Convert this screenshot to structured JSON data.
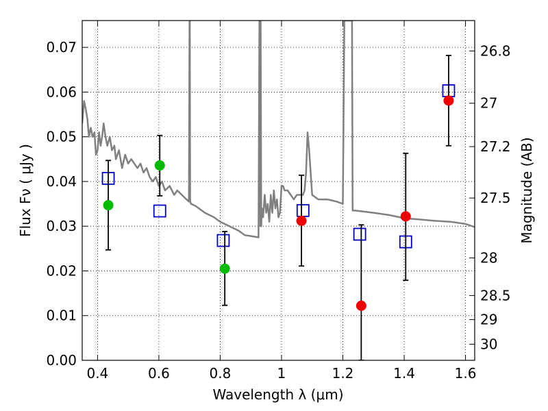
{
  "chart_data": {
    "type": "scatter",
    "xlabel": "Wavelength  λ (μm)",
    "ylabel": "Flux  Fν  ( μJy )",
    "y2label": "Magnitude (AB)",
    "xlim": [
      0.35,
      1.63
    ],
    "ylim": [
      0.0,
      0.076
    ],
    "grid": true,
    "x_ticks": [
      0.4,
      0.6,
      0.8,
      1.0,
      1.2,
      1.4,
      1.6
    ],
    "x_tick_labels": [
      "0.4",
      "0.6",
      "0.8",
      "1",
      "1.2",
      "1.4",
      "1.6"
    ],
    "y_ticks": [
      0.0,
      0.01,
      0.02,
      0.03,
      0.04,
      0.05,
      0.06,
      0.07
    ],
    "y_tick_labels": [
      "0.00",
      "0.01",
      "0.02",
      "0.03",
      "0.04",
      "0.05",
      "0.06",
      "0.07"
    ],
    "mag_ticks": [
      {
        "flux": 0.0692,
        "label": "26.8"
      },
      {
        "flux": 0.0575,
        "label": "27"
      },
      {
        "flux": 0.0478,
        "label": "27.2"
      },
      {
        "flux": 0.0363,
        "label": "27.5"
      },
      {
        "flux": 0.0229,
        "label": "28"
      },
      {
        "flux": 0.0145,
        "label": "28.5"
      },
      {
        "flux": 0.0091,
        "label": "29"
      },
      {
        "flux": 0.0036,
        "label": "30"
      }
    ],
    "colors": {
      "model_line": "#808080",
      "model_points": "#0000cc",
      "detections_green": "#00bb00",
      "detections_red": "#ee0000",
      "error_bars": "#000000"
    },
    "series": [
      {
        "kind": "line",
        "color": "#808080",
        "x": [
          0.35,
          0.356,
          0.362,
          0.367,
          0.372,
          0.378,
          0.384,
          0.39,
          0.395,
          0.4,
          0.405,
          0.41,
          0.415,
          0.42,
          0.426,
          0.432,
          0.44,
          0.447,
          0.455,
          0.46,
          0.47,
          0.48,
          0.49,
          0.5,
          0.51,
          0.52,
          0.53,
          0.54,
          0.55,
          0.56,
          0.57,
          0.58,
          0.59,
          0.6,
          0.61,
          0.62,
          0.635,
          0.65,
          0.66,
          0.675,
          0.69,
          0.698,
          0.7,
          0.701,
          0.702,
          0.705,
          0.72,
          0.75,
          0.78,
          0.8,
          0.83,
          0.86,
          0.88,
          0.9,
          0.925,
          0.928,
          0.93,
          0.931,
          0.932,
          0.934,
          0.936,
          0.94,
          0.945,
          0.95,
          0.955,
          0.96,
          0.965,
          0.97,
          0.975,
          0.98,
          0.985,
          0.99,
          0.995,
          1.0,
          1.005,
          1.01,
          1.02,
          1.03,
          1.04,
          1.05,
          1.06,
          1.07,
          1.075,
          1.08,
          1.085,
          1.09,
          1.1,
          1.12,
          1.15,
          1.18,
          1.2,
          1.205,
          1.206,
          1.22,
          1.23,
          1.232,
          1.233,
          1.24,
          1.3,
          1.35,
          1.4,
          1.45,
          1.5,
          1.55,
          1.6,
          1.63
        ],
        "y": [
          0.053,
          0.058,
          0.056,
          0.054,
          0.05,
          0.052,
          0.05,
          0.051,
          0.046,
          0.047,
          0.051,
          0.048,
          0.05,
          0.053,
          0.05,
          0.048,
          0.05,
          0.047,
          0.048,
          0.045,
          0.047,
          0.043,
          0.046,
          0.044,
          0.045,
          0.044,
          0.043,
          0.044,
          0.042,
          0.043,
          0.041,
          0.04,
          0.041,
          0.039,
          0.04,
          0.038,
          0.039,
          0.037,
          0.038,
          0.037,
          0.036,
          0.0355,
          0.076,
          0.076,
          0.0355,
          0.035,
          0.0345,
          0.033,
          0.032,
          0.031,
          0.03,
          0.029,
          0.028,
          0.0278,
          0.0275,
          0.076,
          0.076,
          0.03,
          0.076,
          0.03,
          0.034,
          0.032,
          0.037,
          0.033,
          0.035,
          0.031,
          0.037,
          0.033,
          0.038,
          0.034,
          0.036,
          0.032,
          0.033,
          0.039,
          0.039,
          0.038,
          0.038,
          0.037,
          0.036,
          0.037,
          0.037,
          0.037,
          0.038,
          0.042,
          0.051,
          0.047,
          0.037,
          0.036,
          0.036,
          0.0355,
          0.035,
          0.076,
          0.076,
          0.076,
          0.076,
          0.0335,
          0.0335,
          0.0335,
          0.033,
          0.0325,
          0.0318,
          0.0315,
          0.0312,
          0.031,
          0.0305,
          0.0298
        ]
      },
      {
        "kind": "model-points",
        "color": "#0000cc",
        "x": [
          0.435,
          0.603,
          0.81,
          1.07,
          1.255,
          1.405,
          1.545
        ],
        "y": [
          0.0407,
          0.0334,
          0.0268,
          0.0335,
          0.0282,
          0.0265,
          0.0603
        ]
      },
      {
        "kind": "detections",
        "color": "#00bb00",
        "x": [
          0.435,
          0.603,
          0.815
        ],
        "y": [
          0.0347,
          0.0436,
          0.0205
        ],
        "err_low": [
          0.0247,
          0.0368,
          0.0123
        ],
        "err_high": [
          0.0447,
          0.0503,
          0.0288
        ]
      },
      {
        "kind": "detections",
        "color": "#ee0000",
        "x": [
          1.065,
          1.26,
          1.405,
          1.545
        ],
        "y": [
          0.0312,
          0.0122,
          0.0322,
          0.0581
        ],
        "err_low": [
          0.0211,
          0.0,
          0.0179,
          0.048
        ],
        "err_high": [
          0.0414,
          0.0303,
          0.0463,
          0.0682
        ]
      }
    ]
  }
}
